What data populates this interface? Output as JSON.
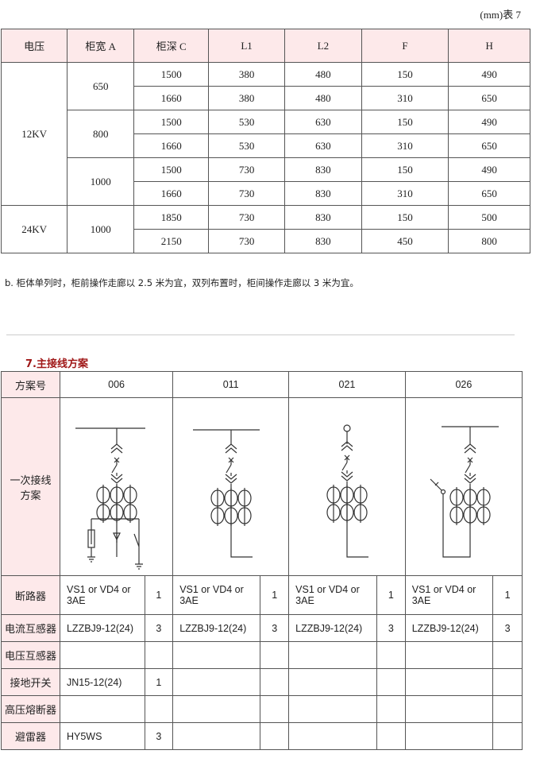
{
  "caption": "(mm)表 7",
  "table1": {
    "headers": [
      "电压",
      "柜宽 A",
      "柜深  C",
      "L1",
      "L2",
      "F",
      "H"
    ],
    "groups": [
      {
        "voltage": "12KV",
        "widths": [
          {
            "width": "650",
            "rows": [
              [
                "1500",
                "380",
                "480",
                "150",
                "490"
              ],
              [
                "1660",
                "380",
                "480",
                "310",
                "650"
              ]
            ]
          },
          {
            "width": "800",
            "rows": [
              [
                "1500",
                "530",
                "630",
                "150",
                "490"
              ],
              [
                "1660",
                "530",
                "630",
                "310",
                "650"
              ]
            ]
          },
          {
            "width": "1000",
            "rows": [
              [
                "1500",
                "730",
                "830",
                "150",
                "490"
              ],
              [
                "1660",
                "730",
                "830",
                "310",
                "650"
              ]
            ]
          }
        ]
      },
      {
        "voltage": "24KV",
        "widths": [
          {
            "width": "1000",
            "rows": [
              [
                "1850",
                "730",
                "830",
                "150",
                "500"
              ],
              [
                "2150",
                "730",
                "830",
                "450",
                "800"
              ]
            ]
          }
        ]
      }
    ]
  },
  "note": "b. 柜体单列时，柜前操作走廊以 2.5 米为宜，双列布置时，柜间操作走廊以 3 米为宜。",
  "section_title": "7.主接线方案",
  "table2": {
    "header_label": "方案号",
    "schemes": [
      "006",
      "011",
      "021",
      "026"
    ],
    "diagram_label": "一次接线方案",
    "rows": [
      {
        "label": "断路器",
        "cells": [
          [
            "VS1 or VD4 or 3AE",
            "1"
          ],
          [
            "VS1 or VD4 or 3AE",
            "1"
          ],
          [
            "VS1 or VD4 or 3AE",
            "1"
          ],
          [
            "VS1 or VD4 or 3AE",
            "1"
          ]
        ]
      },
      {
        "label": "电流互感器",
        "cells": [
          [
            "LZZBJ9-12(24)",
            "3"
          ],
          [
            "LZZBJ9-12(24)",
            "3"
          ],
          [
            "LZZBJ9-12(24)",
            "3"
          ],
          [
            "LZZBJ9-12(24)",
            "3"
          ]
        ]
      },
      {
        "label": "电压互感器",
        "cells": [
          [
            "",
            ""
          ],
          [
            "",
            ""
          ],
          [
            "",
            ""
          ],
          [
            "",
            ""
          ]
        ]
      },
      {
        "label": "接地开关",
        "cells": [
          [
            "JN15-12(24)",
            "1"
          ],
          [
            "",
            ""
          ],
          [
            "",
            ""
          ],
          [
            "",
            ""
          ]
        ]
      },
      {
        "label": "高压熔断器",
        "cells": [
          [
            "",
            ""
          ],
          [
            "",
            ""
          ],
          [
            "",
            ""
          ],
          [
            "",
            ""
          ]
        ]
      },
      {
        "label": "避雷器",
        "cells": [
          [
            "HY5WS",
            "3"
          ],
          [
            "",
            ""
          ],
          [
            "",
            ""
          ],
          [
            "",
            ""
          ]
        ]
      }
    ]
  }
}
